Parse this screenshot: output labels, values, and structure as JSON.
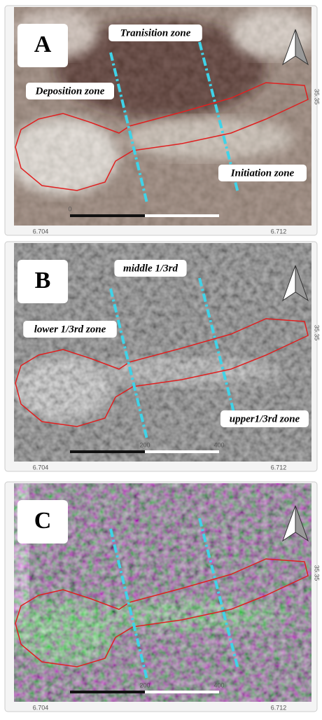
{
  "panels": [
    {
      "letter": "A",
      "zone_labels": [
        "Tranisition zone",
        "Deposition zone",
        "Initiation zone"
      ],
      "scale_labels": [
        "0"
      ]
    },
    {
      "letter": "B",
      "zone_labels": [
        "middle 1/3rd",
        "lower 1/3rd zone",
        "upper1/3rd zone"
      ],
      "scale_labels": [
        "200",
        "400"
      ]
    },
    {
      "letter": "C",
      "scale_labels": [
        "200",
        "400"
      ]
    }
  ],
  "x_labels": [
    "6.704",
    "6.712"
  ],
  "side_label": "35.35"
}
